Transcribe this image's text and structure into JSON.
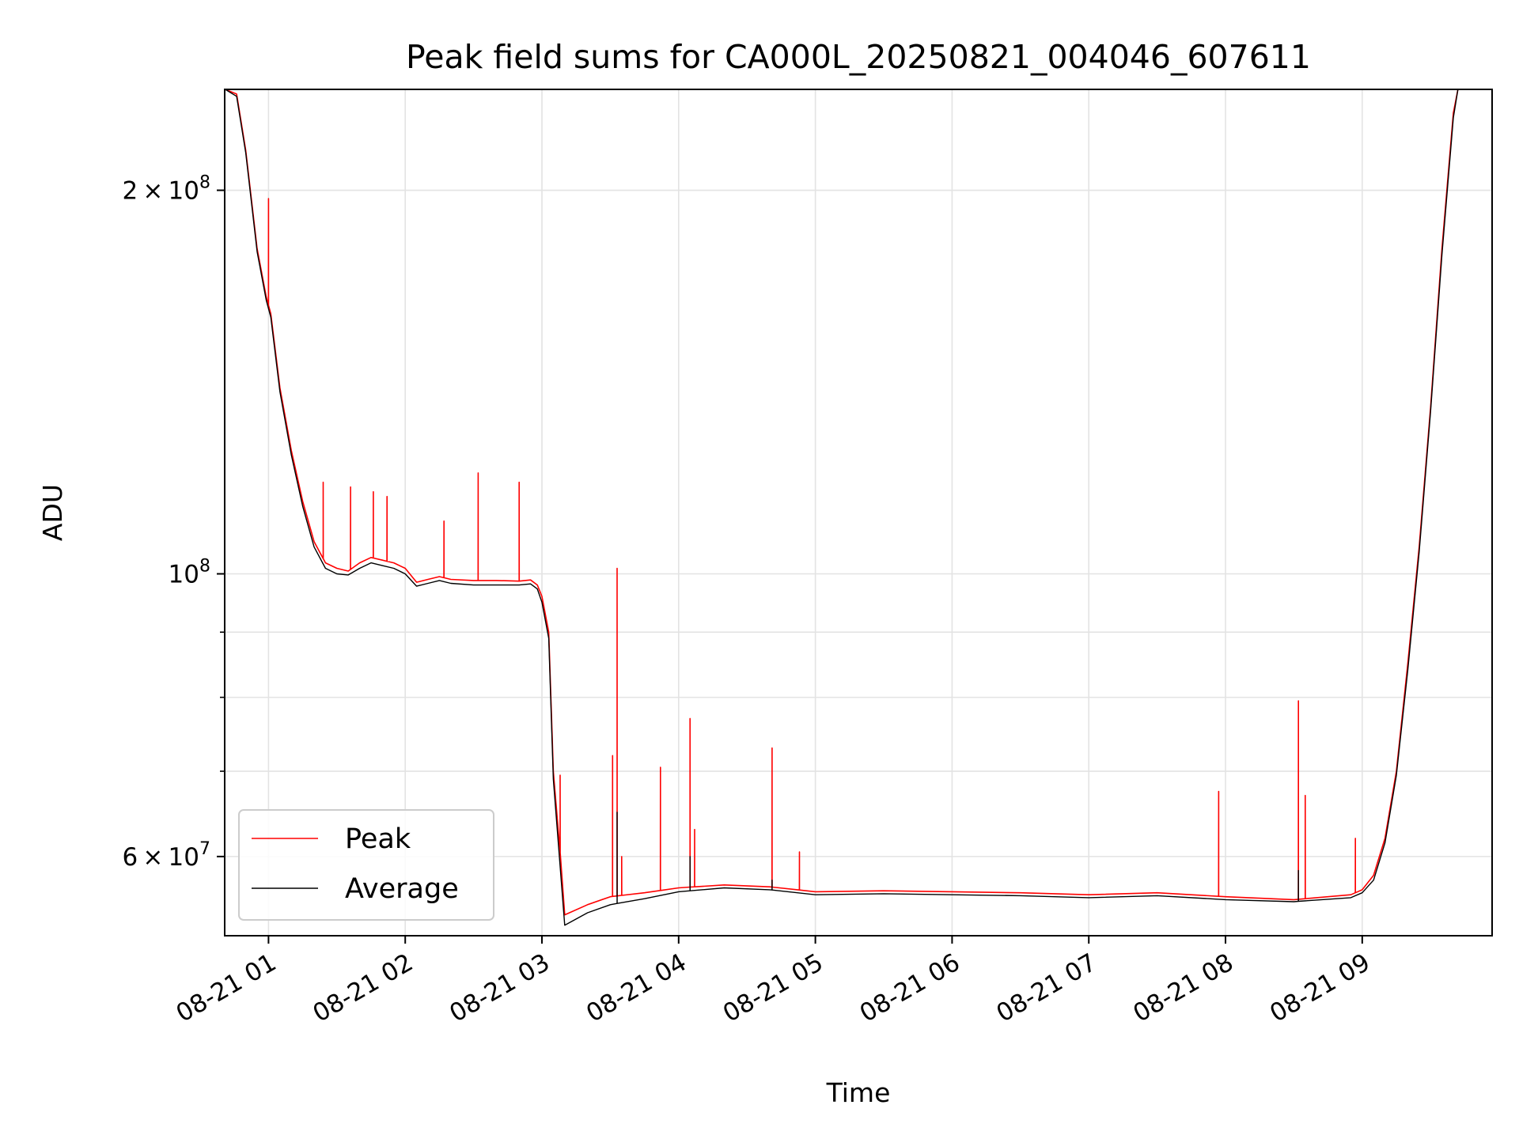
{
  "chart_data": {
    "type": "line",
    "title": "Peak field sums for CA000L_20250821_004046_607611",
    "xlabel": "Time",
    "ylabel": "ADU",
    "y_scale": "log",
    "ylim": [
      52000000,
      240000000
    ],
    "xlim": [
      "2025-08-21 00:40:46",
      "2025-08-21 09:57:00"
    ],
    "grid": true,
    "legend_position": "lower-left",
    "x_ticks": [
      "08-21 01",
      "08-21 02",
      "08-21 03",
      "08-21 04",
      "08-21 05",
      "08-21 06",
      "08-21 07",
      "08-21 08",
      "08-21 09"
    ],
    "x_tick_times": [
      "2025-08-21 01:00",
      "2025-08-21 02:00",
      "2025-08-21 03:00",
      "2025-08-21 04:00",
      "2025-08-21 05:00",
      "2025-08-21 06:00",
      "2025-08-21 07:00",
      "2025-08-21 08:00",
      "2025-08-21 09:00"
    ],
    "y_major_ticks": [
      {
        "value": 200000000,
        "mantissa": "2",
        "exponent": "8"
      },
      {
        "value": 100000000,
        "mantissa": "",
        "exponent": "8"
      },
      {
        "value": 60000000,
        "mantissa": "6",
        "exponent": "7"
      }
    ],
    "y_minor_ticks": [
      70000000,
      80000000,
      90000000
    ],
    "series": [
      {
        "name": "Peak",
        "color": "#ff0000",
        "x": [
          "2025-08-21 00:41",
          "2025-08-21 00:46",
          "2025-08-21 00:50",
          "2025-08-21 00:55",
          "2025-08-21 00:59",
          "2025-08-21 01:01",
          "2025-08-21 01:05",
          "2025-08-21 01:10",
          "2025-08-21 01:15",
          "2025-08-21 01:20",
          "2025-08-21 01:25",
          "2025-08-21 01:30",
          "2025-08-21 01:35",
          "2025-08-21 01:40",
          "2025-08-21 01:45",
          "2025-08-21 01:50",
          "2025-08-21 01:55",
          "2025-08-21 02:00",
          "2025-08-21 02:05",
          "2025-08-21 02:10",
          "2025-08-21 02:15",
          "2025-08-21 02:20",
          "2025-08-21 02:30",
          "2025-08-21 02:40",
          "2025-08-21 02:50",
          "2025-08-21 02:55",
          "2025-08-21 02:58",
          "2025-08-21 03:00",
          "2025-08-21 03:03",
          "2025-08-21 03:05",
          "2025-08-21 03:10",
          "2025-08-21 03:20",
          "2025-08-21 03:30",
          "2025-08-21 03:45",
          "2025-08-21 04:00",
          "2025-08-21 04:20",
          "2025-08-21 04:40",
          "2025-08-21 05:00",
          "2025-08-21 05:30",
          "2025-08-21 06:00",
          "2025-08-21 06:30",
          "2025-08-21 07:00",
          "2025-08-21 07:30",
          "2025-08-21 08:00",
          "2025-08-21 08:30",
          "2025-08-21 08:55",
          "2025-08-21 09:00",
          "2025-08-21 09:05",
          "2025-08-21 09:10",
          "2025-08-21 09:15",
          "2025-08-21 09:20",
          "2025-08-21 09:25",
          "2025-08-21 09:30",
          "2025-08-21 09:35",
          "2025-08-21 09:40",
          "2025-08-21 09:42"
        ],
        "values": [
          240000000,
          238000000,
          215000000,
          180000000,
          165000000,
          160000000,
          140000000,
          125000000,
          114000000,
          106000000,
          102000000,
          101000000,
          100500000,
          102000000,
          103000000,
          102500000,
          102000000,
          101000000,
          98500000,
          99000000,
          99500000,
          99000000,
          98800000,
          98800000,
          98700000,
          98900000,
          98000000,
          96000000,
          90000000,
          70000000,
          54000000,
          55000000,
          55800000,
          56200000,
          56700000,
          57000000,
          56800000,
          56300000,
          56400000,
          56300000,
          56200000,
          56000000,
          56200000,
          55800000,
          55500000,
          56000000,
          56500000,
          58000000,
          62000000,
          70000000,
          85000000,
          105000000,
          135000000,
          180000000,
          230000000,
          240000000
        ]
      },
      {
        "name": "Average",
        "color": "#000000",
        "x": [
          "2025-08-21 00:41",
          "2025-08-21 00:46",
          "2025-08-21 00:50",
          "2025-08-21 00:55",
          "2025-08-21 00:59",
          "2025-08-21 01:01",
          "2025-08-21 01:05",
          "2025-08-21 01:10",
          "2025-08-21 01:15",
          "2025-08-21 01:20",
          "2025-08-21 01:25",
          "2025-08-21 01:30",
          "2025-08-21 01:35",
          "2025-08-21 01:40",
          "2025-08-21 01:45",
          "2025-08-21 01:50",
          "2025-08-21 01:55",
          "2025-08-21 02:00",
          "2025-08-21 02:05",
          "2025-08-21 02:10",
          "2025-08-21 02:15",
          "2025-08-21 02:20",
          "2025-08-21 02:30",
          "2025-08-21 02:40",
          "2025-08-21 02:50",
          "2025-08-21 02:55",
          "2025-08-21 02:58",
          "2025-08-21 03:00",
          "2025-08-21 03:03",
          "2025-08-21 03:05",
          "2025-08-21 03:10",
          "2025-08-21 03:20",
          "2025-08-21 03:30",
          "2025-08-21 03:45",
          "2025-08-21 04:00",
          "2025-08-21 04:20",
          "2025-08-21 04:40",
          "2025-08-21 05:00",
          "2025-08-21 05:30",
          "2025-08-21 06:00",
          "2025-08-21 06:30",
          "2025-08-21 07:00",
          "2025-08-21 07:30",
          "2025-08-21 08:00",
          "2025-08-21 08:30",
          "2025-08-21 08:55",
          "2025-08-21 09:00",
          "2025-08-21 09:05",
          "2025-08-21 09:10",
          "2025-08-21 09:15",
          "2025-08-21 09:20",
          "2025-08-21 09:25",
          "2025-08-21 09:30",
          "2025-08-21 09:35",
          "2025-08-21 09:40",
          "2025-08-21 09:42"
        ],
        "values": [
          240000000,
          237000000,
          214000000,
          179000000,
          164000000,
          159000000,
          139000000,
          124000000,
          113000000,
          105000000,
          101000000,
          100000000,
          99800000,
          101000000,
          102000000,
          101500000,
          101000000,
          100000000,
          97800000,
          98300000,
          98800000,
          98300000,
          98000000,
          98000000,
          98000000,
          98200000,
          97300000,
          95000000,
          89000000,
          69000000,
          53000000,
          54200000,
          55000000,
          55600000,
          56300000,
          56700000,
          56500000,
          56000000,
          56100000,
          56000000,
          55900000,
          55700000,
          55900000,
          55500000,
          55300000,
          55700000,
          56200000,
          57500000,
          61500000,
          69500000,
          84000000,
          104000000,
          134000000,
          178000000,
          228000000,
          240000000
        ]
      }
    ],
    "spikes": {
      "Peak": [
        {
          "x": "2025-08-21 01:00",
          "y": 197000000
        },
        {
          "x": "2025-08-21 01:24",
          "y": 118000000
        },
        {
          "x": "2025-08-21 01:36",
          "y": 117000000
        },
        {
          "x": "2025-08-21 01:46",
          "y": 116000000
        },
        {
          "x": "2025-08-21 01:52",
          "y": 115000000
        },
        {
          "x": "2025-08-21 02:17",
          "y": 110000000
        },
        {
          "x": "2025-08-21 02:32",
          "y": 120000000
        },
        {
          "x": "2025-08-21 02:50",
          "y": 118000000
        },
        {
          "x": "2025-08-21 03:08",
          "y": 69500000
        },
        {
          "x": "2025-08-21 03:31",
          "y": 72000000
        },
        {
          "x": "2025-08-21 03:33",
          "y": 101000000
        },
        {
          "x": "2025-08-21 03:35",
          "y": 60000000
        },
        {
          "x": "2025-08-21 03:52",
          "y": 70500000
        },
        {
          "x": "2025-08-21 04:05",
          "y": 77000000
        },
        {
          "x": "2025-08-21 04:07",
          "y": 63000000
        },
        {
          "x": "2025-08-21 04:41",
          "y": 73000000
        },
        {
          "x": "2025-08-21 04:53",
          "y": 60500000
        },
        {
          "x": "2025-08-21 07:57",
          "y": 67500000
        },
        {
          "x": "2025-08-21 08:32",
          "y": 79500000
        },
        {
          "x": "2025-08-21 08:35",
          "y": 67000000
        },
        {
          "x": "2025-08-21 08:57",
          "y": 62000000
        }
      ],
      "Average": [
        {
          "x": "2025-08-21 03:33",
          "y": 65000000
        },
        {
          "x": "2025-08-21 04:05",
          "y": 60000000
        },
        {
          "x": "2025-08-21 04:41",
          "y": 57500000
        },
        {
          "x": "2025-08-21 08:32",
          "y": 58500000
        }
      ]
    }
  }
}
